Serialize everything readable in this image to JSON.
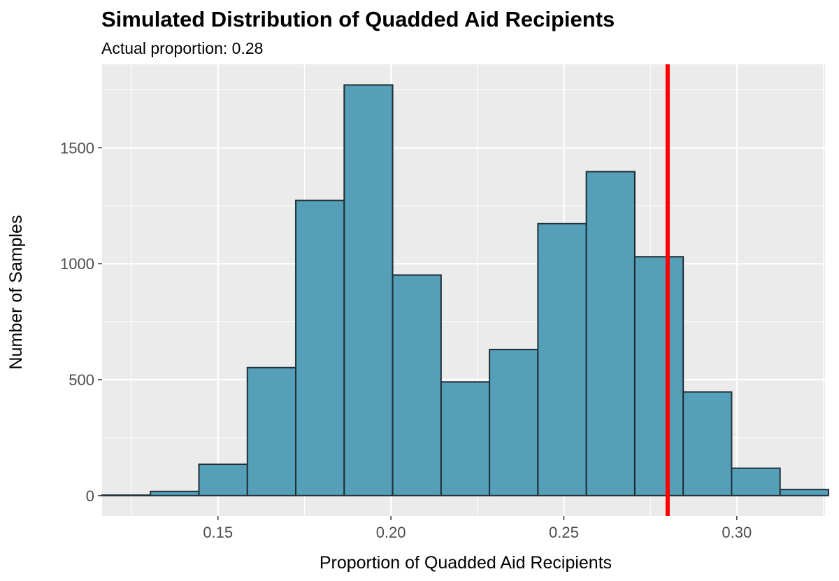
{
  "chart_data": {
    "type": "bar",
    "title": "Simulated Distribution of Quadded Aid Recipients",
    "subtitle": "Actual proportion: 0.28",
    "xlabel": "Proportion of Quadded Aid Recipients",
    "ylabel": "Number of Samples",
    "xlim": [
      0.1165,
      0.3255
    ],
    "ylim": [
      -88,
      1860
    ],
    "x_ticks": [
      0.15,
      0.2,
      0.25,
      0.3
    ],
    "x_tick_labels": [
      "0.15",
      "0.20",
      "0.25",
      "0.30"
    ],
    "y_ticks": [
      0,
      500,
      1000,
      1500
    ],
    "y_tick_labels": [
      "0",
      "500",
      "1000",
      "1500"
    ],
    "bins": [
      {
        "x0": 0.1165,
        "x1": 0.1305,
        "count": 2
      },
      {
        "x0": 0.1305,
        "x1": 0.1445,
        "count": 18
      },
      {
        "x0": 0.1445,
        "x1": 0.1585,
        "count": 135
      },
      {
        "x0": 0.1585,
        "x1": 0.1725,
        "count": 552
      },
      {
        "x0": 0.1725,
        "x1": 0.1865,
        "count": 1273
      },
      {
        "x0": 0.1865,
        "x1": 0.2005,
        "count": 1771
      },
      {
        "x0": 0.2005,
        "x1": 0.2145,
        "count": 951
      },
      {
        "x0": 0.2145,
        "x1": 0.2285,
        "count": 490
      },
      {
        "x0": 0.2285,
        "x1": 0.2425,
        "count": 630
      },
      {
        "x0": 0.2425,
        "x1": 0.2565,
        "count": 1173
      },
      {
        "x0": 0.2565,
        "x1": 0.2705,
        "count": 1397
      },
      {
        "x0": 0.2705,
        "x1": 0.2845,
        "count": 1030
      },
      {
        "x0": 0.2845,
        "x1": 0.2985,
        "count": 447
      },
      {
        "x0": 0.2985,
        "x1": 0.3125,
        "count": 118
      },
      {
        "x0": 0.3125,
        "x1": 0.3265,
        "count": 26
      }
    ],
    "reference_line": {
      "x": 0.28,
      "color": "#ff0000"
    },
    "bar_fill": "#569fb9",
    "bar_stroke": "#1f2f36",
    "panel_background": "#ebebeb",
    "grid_color": "#ffffff",
    "grid": true,
    "legend": "none"
  }
}
